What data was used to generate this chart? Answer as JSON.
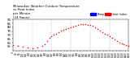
{
  "title": "Milwaukee Weather Outdoor Temperature vs Heat Index per Minute (24 Hours)",
  "title_fontsize": 2.8,
  "background_color": "#ffffff",
  "legend_blue_label": "Temp",
  "legend_red_label": "Heat Index",
  "xlim": [
    0,
    1440
  ],
  "ylim": [
    50,
    90
  ],
  "yticks": [
    55,
    60,
    65,
    70,
    75,
    80,
    85,
    90
  ],
  "ytick_fontsize": 2.8,
  "xtick_fontsize": 2.0,
  "vlines": [
    240,
    480,
    720,
    960,
    1200
  ],
  "temp_x": [
    0,
    60,
    120,
    180,
    240,
    300,
    360,
    390,
    420,
    450,
    480,
    510,
    540,
    570,
    600,
    630,
    660,
    690,
    720,
    750,
    780,
    810,
    840,
    870,
    900,
    930,
    960,
    990,
    1020,
    1050,
    1080,
    1110,
    1140,
    1170,
    1200,
    1230,
    1260,
    1290,
    1320,
    1350,
    1380,
    1410,
    1440
  ],
  "temp_y": [
    57,
    56,
    55,
    54,
    53,
    54,
    56,
    58,
    62,
    66,
    68,
    70,
    72,
    74,
    76,
    77,
    78,
    79,
    80,
    81,
    82,
    83,
    84,
    84,
    84,
    83,
    83,
    82,
    80,
    78,
    76,
    74,
    72,
    70,
    68,
    66,
    64,
    62,
    60,
    59,
    58,
    57,
    56
  ],
  "dot_color": "#ff0000",
  "dot_size": 1.2
}
